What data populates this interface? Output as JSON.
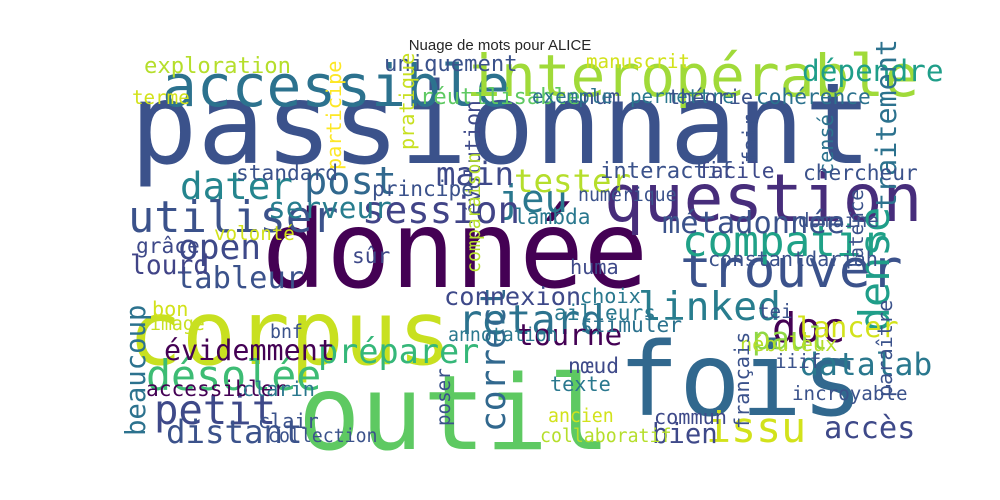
{
  "chart_data": {
    "type": "wordcloud",
    "title": "Nuage de mots pour ALICE",
    "colormap": "viridis",
    "words": [
      {
        "text": "passionnant",
        "weight": 1.0,
        "orientation": "horizontal",
        "color": "#3b528b"
      },
      {
        "text": "donnée",
        "weight": 0.95,
        "orientation": "horizontal",
        "color": "#440154"
      },
      {
        "text": "outil",
        "weight": 0.92,
        "orientation": "horizontal",
        "color": "#5ec962"
      },
      {
        "text": "fois",
        "weight": 0.9,
        "orientation": "horizontal",
        "color": "#31688e"
      },
      {
        "text": "corpus",
        "weight": 0.78,
        "orientation": "horizontal",
        "color": "#c8e020"
      },
      {
        "text": "question",
        "weight": 0.55,
        "orientation": "horizontal",
        "color": "#472d7b"
      },
      {
        "text": "accessible",
        "weight": 0.47,
        "orientation": "horizontal",
        "color": "#2c728e"
      },
      {
        "text": "interopérable",
        "weight": 0.47,
        "orientation": "horizontal",
        "color": "#a0da39"
      },
      {
        "text": "trouver",
        "weight": 0.42,
        "orientation": "horizontal",
        "color": "#3b528b"
      },
      {
        "text": "utiliser",
        "weight": 0.33,
        "orientation": "horizontal",
        "color": "#3b528b"
      },
      {
        "text": "compatir",
        "weight": 0.32,
        "orientation": "horizontal",
        "color": "#1fa187"
      },
      {
        "text": "dense",
        "weight": 0.31,
        "orientation": "vertical",
        "color": "#1f9e89"
      },
      {
        "text": "désolée",
        "weight": 0.31,
        "orientation": "horizontal",
        "color": "#3dbc74"
      },
      {
        "text": "issu",
        "weight": 0.31,
        "orientation": "horizontal",
        "color": "#d2e21b"
      },
      {
        "text": "petit",
        "weight": 0.3,
        "orientation": "horizontal",
        "color": "#3e4989"
      },
      {
        "text": "retard",
        "weight": 0.3,
        "orientation": "horizontal",
        "color": "#2c728e"
      },
      {
        "text": "doc",
        "weight": 0.3,
        "orientation": "horizontal",
        "color": "#440154"
      },
      {
        "text": "linked",
        "weight": 0.29,
        "orientation": "horizontal",
        "color": "#287d8e"
      },
      {
        "text": "post",
        "weight": 0.28,
        "orientation": "horizontal",
        "color": "#31688e"
      },
      {
        "text": "jeu",
        "weight": 0.28,
        "orientation": "horizontal",
        "color": "#2a788e"
      },
      {
        "text": "dater",
        "weight": 0.27,
        "orientation": "horizontal",
        "color": "#25858e"
      },
      {
        "text": "session",
        "weight": 0.27,
        "orientation": "horizontal",
        "color": "#414487"
      },
      {
        "text": "open",
        "weight": 0.24,
        "orientation": "horizontal",
        "color": "#3e4989"
      },
      {
        "text": "correct",
        "weight": 0.24,
        "orientation": "vertical",
        "color": "#31688e"
      },
      {
        "text": "préparer",
        "weight": 0.23,
        "orientation": "horizontal",
        "color": "#35b779"
      },
      {
        "text": "distant",
        "weight": 0.22,
        "orientation": "horizontal",
        "color": "#3b528b"
      },
      {
        "text": "tester",
        "weight": 0.22,
        "orientation": "horizontal",
        "color": "#b5de2b"
      },
      {
        "text": "main",
        "weight": 0.22,
        "orientation": "horizontal",
        "color": "#3e4989"
      },
      {
        "text": "datalab",
        "weight": 0.21,
        "orientation": "horizontal",
        "color": "#2a788e"
      },
      {
        "text": "paul",
        "weight": 0.21,
        "orientation": "horizontal",
        "color": "#8fd744"
      },
      {
        "text": "accès",
        "weight": 0.2,
        "orientation": "horizontal",
        "color": "#3e4989"
      },
      {
        "text": "métadonnée",
        "weight": 0.2,
        "orientation": "horizontal",
        "color": "#3b528b"
      },
      {
        "text": "tableur",
        "weight": 0.2,
        "orientation": "horizontal",
        "color": "#3b528b"
      },
      {
        "text": "serveur",
        "weight": 0.19,
        "orientation": "horizontal",
        "color": "#287d8e"
      },
      {
        "text": "dépendre",
        "weight": 0.19,
        "orientation": "horizontal",
        "color": "#1f9e89"
      },
      {
        "text": "tourne",
        "weight": 0.19,
        "orientation": "horizontal",
        "color": "#440154"
      },
      {
        "text": "évidemment",
        "weight": 0.18,
        "orientation": "horizontal",
        "color": "#440154"
      },
      {
        "text": "lancer",
        "weight": 0.18,
        "orientation": "horizontal",
        "color": "#d2e21b"
      },
      {
        "text": "traitement",
        "weight": 0.18,
        "orientation": "vertical",
        "color": "#2c728e"
      },
      {
        "text": "beaucoup",
        "weight": 0.17,
        "orientation": "vertical",
        "color": "#2c728e"
      },
      {
        "text": "bien",
        "weight": 0.17,
        "orientation": "horizontal",
        "color": "#3e4989"
      },
      {
        "text": "lourd",
        "weight": 0.16,
        "orientation": "horizontal",
        "color": "#414487"
      },
      {
        "text": "connexion",
        "weight": 0.15,
        "orientation": "horizontal",
        "color": "#3e4989"
      },
      {
        "text": "exploration",
        "weight": 0.12,
        "orientation": "horizontal",
        "color": "#b5de2b"
      },
      {
        "text": "uniquement",
        "weight": 0.12,
        "orientation": "horizontal",
        "color": "#3b528b"
      },
      {
        "text": "manuscrit",
        "weight": 0.09,
        "orientation": "horizontal",
        "color": "#d2e21b"
      },
      {
        "text": "réutilisable",
        "weight": 0.12,
        "orientation": "horizontal",
        "color": "#5ec962"
      },
      {
        "text": "num",
        "weight": 0.11,
        "orientation": "horizontal",
        "color": "#3b528b"
      },
      {
        "text": "exemple",
        "weight": 0.09,
        "orientation": "horizontal",
        "color": "#2c728e"
      },
      {
        "text": "permettre",
        "weight": 0.09,
        "orientation": "horizontal",
        "color": "#2a788e"
      },
      {
        "text": "théorie",
        "weight": 0.1,
        "orientation": "horizontal",
        "color": "#3b528b"
      },
      {
        "text": "cohérence",
        "weight": 0.11,
        "orientation": "horizontal",
        "color": "#2c728e"
      },
      {
        "text": "terme",
        "weight": 0.09,
        "orientation": "horizontal",
        "color": "#d2e21b"
      },
      {
        "text": "participe",
        "weight": 0.1,
        "orientation": "vertical",
        "color": "#fde725"
      },
      {
        "text": "pratique",
        "weight": 0.1,
        "orientation": "vertical",
        "color": "#c8e020"
      },
      {
        "text": "évolution",
        "weight": 0.11,
        "orientation": "vertical",
        "color": "#3e4989"
      },
      {
        "text": "fair",
        "weight": 0.1,
        "orientation": "vertical",
        "color": "#3b528b"
      },
      {
        "text": "censé",
        "weight": 0.1,
        "orientation": "vertical",
        "color": "#2c728e"
      },
      {
        "text": "standard",
        "weight": 0.11,
        "orientation": "horizontal",
        "color": "#3b528b"
      },
      {
        "text": "principe",
        "weight": 0.11,
        "orientation": "horizontal",
        "color": "#3b528b"
      },
      {
        "text": "interactif",
        "weight": 0.12,
        "orientation": "horizontal",
        "color": "#3b528b"
      },
      {
        "text": "facile",
        "weight": 0.11,
        "orientation": "horizontal",
        "color": "#3e4989"
      },
      {
        "text": "chercheur",
        "weight": 0.11,
        "orientation": "horizontal",
        "color": "#3b528b"
      },
      {
        "text": "numérique",
        "weight": 0.08,
        "orientation": "horizontal",
        "color": "#3b528b"
      },
      {
        "text": "comparaison",
        "weight": 0.08,
        "orientation": "vertical",
        "color": "#b5de2b"
      },
      {
        "text": "volonté",
        "weight": 0.09,
        "orientation": "horizontal",
        "color": "#d2e21b"
      },
      {
        "text": "lambda",
        "weight": 0.11,
        "orientation": "horizontal",
        "color": "#2a788e"
      },
      {
        "text": "domaine",
        "weight": 0.09,
        "orientation": "horizontal",
        "color": "#3b528b"
      },
      {
        "text": "grâce",
        "weight": 0.11,
        "orientation": "horizontal",
        "color": "#3e4989"
      },
      {
        "text": "sûr",
        "weight": 0.11,
        "orientation": "horizontal",
        "color": "#3e4989"
      },
      {
        "text": "latence",
        "weight": 0.09,
        "orientation": "vertical",
        "color": "#3b528b"
      },
      {
        "text": "constant",
        "weight": 0.1,
        "orientation": "horizontal",
        "color": "#3b528b"
      },
      {
        "text": "dariah",
        "weight": 0.1,
        "orientation": "horizontal",
        "color": "#3b528b"
      },
      {
        "text": "huma",
        "weight": 0.1,
        "orientation": "horizontal",
        "color": "#3e4989"
      },
      {
        "text": "choix",
        "weight": 0.1,
        "orientation": "horizontal",
        "color": "#2a788e"
      },
      {
        "text": "ailleurs",
        "weight": 0.11,
        "orientation": "horizontal",
        "color": "#2a788e"
      },
      {
        "text": "tei",
        "weight": 0.09,
        "orientation": "horizontal",
        "color": "#3b528b"
      },
      {
        "text": "stimuler",
        "weight": 0.11,
        "orientation": "horizontal",
        "color": "#2c728e"
      },
      {
        "text": "bon",
        "weight": 0.1,
        "orientation": "horizontal",
        "color": "#d2e21b"
      },
      {
        "text": "image",
        "weight": 0.08,
        "orientation": "horizontal",
        "color": "#c8e020"
      },
      {
        "text": "bnf",
        "weight": 0.08,
        "orientation": "horizontal",
        "color": "#3b528b"
      },
      {
        "text": "annotation",
        "weight": 0.08,
        "orientation": "horizontal",
        "color": "#2a788e"
      },
      {
        "text": "nébuleux",
        "weight": 0.1,
        "orientation": "horizontal",
        "color": "#b5de2b"
      },
      {
        "text": "iiif",
        "weight": 0.09,
        "orientation": "horizontal",
        "color": "#3b528b"
      },
      {
        "text": "paraître",
        "weight": 0.1,
        "orientation": "vertical",
        "color": "#3b528b"
      },
      {
        "text": "nœud",
        "weight": 0.11,
        "orientation": "horizontal",
        "color": "#3e4989"
      },
      {
        "text": "texte",
        "weight": 0.1,
        "orientation": "horizontal",
        "color": "#2a788e"
      },
      {
        "text": "accessibler",
        "weight": 0.11,
        "orientation": "horizontal",
        "color": "#440154"
      },
      {
        "text": "clarin",
        "weight": 0.1,
        "orientation": "horizontal",
        "color": "#2a788e"
      },
      {
        "text": "clair",
        "weight": 0.1,
        "orientation": "horizontal",
        "color": "#3b528b"
      },
      {
        "text": "poser",
        "weight": 0.09,
        "orientation": "vertical",
        "color": "#3b528b"
      },
      {
        "text": "ancien",
        "weight": 0.08,
        "orientation": "horizontal",
        "color": "#d2e21b"
      },
      {
        "text": "commun",
        "weight": 0.1,
        "orientation": "horizontal",
        "color": "#3e4989"
      },
      {
        "text": "français",
        "weight": 0.1,
        "orientation": "vertical",
        "color": "#3b528b"
      },
      {
        "text": "incroyable",
        "weight": 0.09,
        "orientation": "horizontal",
        "color": "#3b528b"
      },
      {
        "text": "collection",
        "weight": 0.08,
        "orientation": "horizontal",
        "color": "#3b528b"
      },
      {
        "text": "collaboratif",
        "weight": 0.08,
        "orientation": "horizontal",
        "color": "#b5de2b"
      }
    ]
  }
}
